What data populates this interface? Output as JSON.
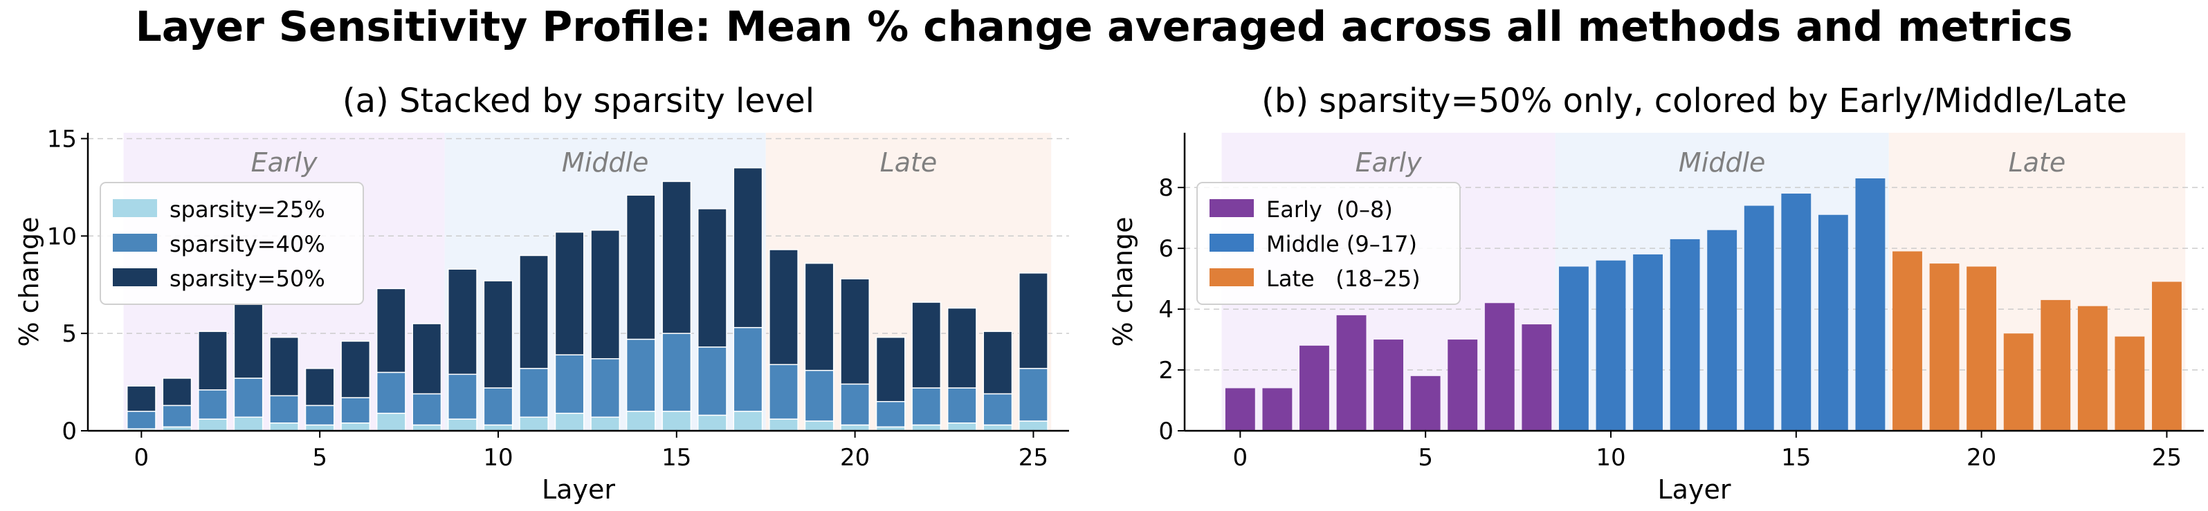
{
  "figure_title": "Layer Sensitivity Profile: Mean % change averaged across all methods and metrics",
  "chart_data": [
    {
      "type": "bar",
      "stacked": true,
      "title": "(a) Stacked by sparsity level",
      "xlabel": "Layer",
      "ylabel": "% change",
      "ylim": [
        0,
        15.3
      ],
      "xlim": [
        -1.5,
        26
      ],
      "xticks": [
        "0",
        "5",
        "10",
        "15",
        "20",
        "25"
      ],
      "yticks": [
        "0",
        "5",
        "10",
        "15"
      ],
      "grid": "y-dashed",
      "legend_position": "upper-left",
      "regions": [
        {
          "label": "Early",
          "from": -0.5,
          "to": 8.5,
          "color": "#f6effc"
        },
        {
          "label": "Middle",
          "from": 8.5,
          "to": 17.5,
          "color": "#eef4fc"
        },
        {
          "label": "Late",
          "from": 17.5,
          "to": 25.5,
          "color": "#fdf3ee"
        }
      ],
      "layers": [
        0,
        1,
        2,
        3,
        4,
        5,
        6,
        7,
        8,
        9,
        10,
        11,
        12,
        13,
        14,
        15,
        16,
        17,
        18,
        19,
        20,
        21,
        22,
        23,
        24,
        25
      ],
      "series": [
        {
          "name": "sparsity=25%",
          "color": "#a8d8e8",
          "values": [
            0.1,
            0.2,
            0.6,
            0.7,
            0.4,
            0.3,
            0.4,
            0.9,
            0.3,
            0.6,
            0.3,
            0.7,
            0.9,
            0.7,
            1.0,
            1.0,
            0.8,
            1.0,
            0.6,
            0.5,
            0.3,
            0.2,
            0.3,
            0.4,
            0.3,
            0.5
          ]
        },
        {
          "name": "sparsity=40%",
          "color": "#4a86bb",
          "values": [
            0.9,
            1.1,
            1.5,
            2.0,
            1.4,
            1.0,
            1.3,
            2.1,
            1.6,
            2.3,
            1.9,
            2.5,
            3.0,
            3.0,
            3.7,
            4.0,
            3.5,
            4.3,
            2.8,
            2.6,
            2.1,
            1.3,
            1.9,
            1.8,
            1.6,
            2.7
          ]
        },
        {
          "name": "sparsity=50%",
          "color": "#1b3a5e",
          "values": [
            1.3,
            1.4,
            3.0,
            3.8,
            3.0,
            1.9,
            2.9,
            4.3,
            3.6,
            5.4,
            5.5,
            5.8,
            6.3,
            6.6,
            7.4,
            7.8,
            7.1,
            8.2,
            5.9,
            5.5,
            5.4,
            3.3,
            4.4,
            4.1,
            3.2,
            4.9
          ]
        }
      ]
    },
    {
      "type": "bar",
      "title": "(b) sparsity=50% only, colored by Early/Middle/Late",
      "xlabel": "Layer",
      "ylabel": "% change",
      "ylim": [
        0,
        9.8
      ],
      "xlim": [
        -1.5,
        26
      ],
      "xticks": [
        "0",
        "5",
        "10",
        "15",
        "20",
        "25"
      ],
      "yticks": [
        "0",
        "2",
        "4",
        "6",
        "8"
      ],
      "grid": "y-dashed",
      "legend_position": "upper-left",
      "regions": [
        {
          "label": "Early",
          "from": -0.5,
          "to": 8.5,
          "color": "#f6effc"
        },
        {
          "label": "Middle",
          "from": 8.5,
          "to": 17.5,
          "color": "#eef4fc"
        },
        {
          "label": "Late",
          "from": 17.5,
          "to": 25.5,
          "color": "#fdf3ee"
        }
      ],
      "groups": [
        {
          "name": "Early  (0–8)",
          "color": "#7d3f9e",
          "from": 0,
          "to": 8
        },
        {
          "name": "Middle (9–17)",
          "color": "#3a7bc2",
          "from": 9,
          "to": 17
        },
        {
          "name": "Late   (18–25)",
          "color": "#e07f38",
          "from": 18,
          "to": 25
        }
      ],
      "layers": [
        0,
        1,
        2,
        3,
        4,
        5,
        6,
        7,
        8,
        9,
        10,
        11,
        12,
        13,
        14,
        15,
        16,
        17,
        18,
        19,
        20,
        21,
        22,
        23,
        24,
        25
      ],
      "values": [
        1.4,
        1.4,
        2.8,
        3.8,
        3.0,
        1.8,
        3.0,
        4.2,
        3.5,
        5.4,
        5.6,
        5.8,
        6.3,
        6.6,
        7.4,
        7.8,
        7.1,
        8.3,
        5.9,
        5.5,
        5.4,
        3.2,
        4.3,
        4.1,
        3.1,
        4.9
      ]
    }
  ]
}
